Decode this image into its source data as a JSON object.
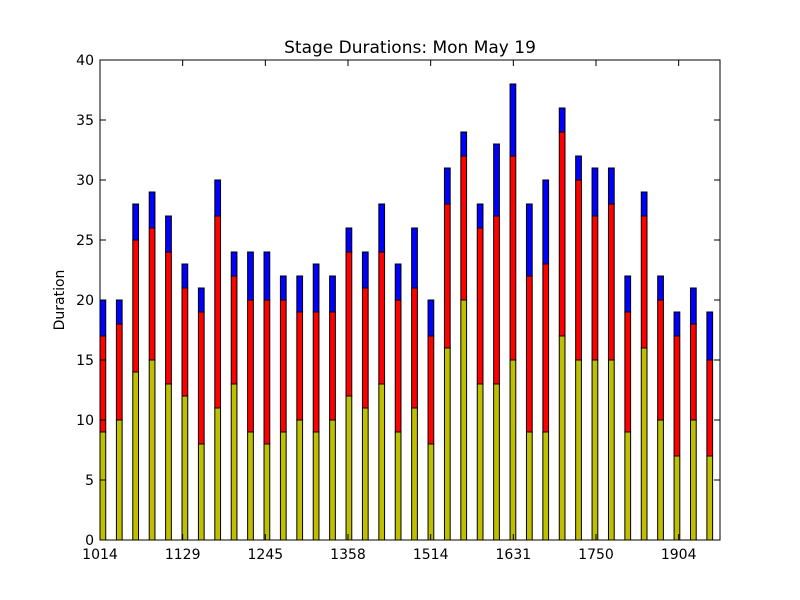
{
  "chart_data": {
    "type": "bar",
    "stacked": true,
    "title": "Stage Durations: Mon May 19",
    "xlabel": "",
    "ylabel": "Duration",
    "ylim": [
      0,
      40
    ],
    "y_ticks": [
      0,
      5,
      10,
      15,
      20,
      25,
      30,
      35,
      40
    ],
    "x_tick_labels": [
      "1014",
      "1129",
      "1245",
      "1358",
      "1514",
      "1631",
      "1750",
      "1904"
    ],
    "grid": false,
    "legend": "none",
    "bar_count": 38,
    "series": [
      {
        "color": "#bfbf00",
        "values": [
          9,
          10,
          14,
          15,
          13,
          12,
          8,
          11,
          13,
          9,
          8,
          9,
          10,
          9,
          10,
          12,
          11,
          13,
          9,
          11,
          8,
          16,
          20,
          13,
          13,
          15,
          9,
          9,
          17,
          15,
          15,
          15,
          9,
          16,
          10,
          7,
          10,
          7
        ]
      },
      {
        "color": "#ff0000",
        "values": [
          8,
          8,
          11,
          11,
          11,
          9,
          11,
          16,
          9,
          11,
          12,
          11,
          9,
          10,
          9,
          12,
          10,
          11,
          11,
          10,
          9,
          12,
          12,
          13,
          14,
          17,
          13,
          14,
          17,
          15,
          12,
          13,
          10,
          11,
          10,
          10,
          8,
          8
        ]
      },
      {
        "color": "#0000ff",
        "values": [
          3,
          2,
          3,
          3,
          3,
          2,
          2,
          3,
          2,
          4,
          4,
          2,
          3,
          4,
          3,
          2,
          3,
          4,
          3,
          5,
          3,
          3,
          2,
          2,
          6,
          6,
          6,
          7,
          2,
          2,
          4,
          3,
          3,
          2,
          2,
          2,
          3,
          4
        ]
      }
    ]
  }
}
